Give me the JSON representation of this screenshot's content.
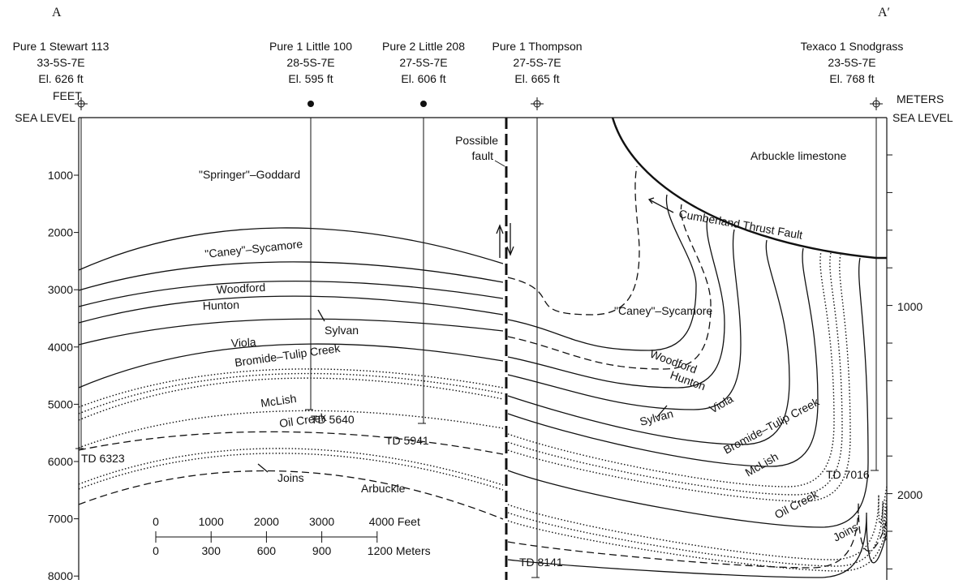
{
  "header": {
    "left_marker": "A",
    "right_marker": "A′"
  },
  "wells": [
    {
      "name": "Pure 1 Stewart 113",
      "location": "33-5S-7E",
      "elevation": "El. 626 ft",
      "td": "TD 6323"
    },
    {
      "name": "Pure 1 Little 100",
      "location": "28-5S-7E",
      "elevation": "El. 595 ft",
      "td": "TD 5640"
    },
    {
      "name": "Pure 2 Little 208",
      "location": "27-5S-7E",
      "elevation": "El. 606 ft",
      "td": "TD 5941"
    },
    {
      "name": "Pure 1 Thompson",
      "location": "27-5S-7E",
      "elevation": "El. 665 ft",
      "td": "TD 8141"
    },
    {
      "name": "Texaco 1 Snodgrass",
      "location": "23-5S-7E",
      "elevation": "El. 768 ft",
      "td": "TD 7016"
    }
  ],
  "left_axis": {
    "unit": "FEET",
    "datum": "SEA LEVEL",
    "ticks": [
      "1000",
      "2000",
      "3000",
      "4000",
      "5000",
      "6000",
      "7000",
      "8000"
    ]
  },
  "right_axis": {
    "unit": "METERS",
    "datum": "SEA LEVEL",
    "ticks": [
      "1000",
      "2000"
    ]
  },
  "formations": [
    "\"Springer\"–Goddard",
    "Arbuckle limestone",
    "\"Caney\"–Sycamore",
    "Woodford",
    "Hunton",
    "Sylvan",
    "Viola",
    "Bromide–Tulip Creek",
    "McLish",
    "Oil Creek",
    "Joins",
    "Arbuckle",
    "\"Caney\"–Sycamore",
    "Woodford",
    "Hunton",
    "Sylvan",
    "Viola",
    "Bromide–Tulip Creek",
    "McLish",
    "Oil Creek",
    "Joins"
  ],
  "annotations": {
    "possible_fault": [
      "Possible",
      "fault"
    ],
    "thrust_fault": "Cumberland Thrust Fault"
  },
  "scale_bar": {
    "feet": [
      "0",
      "1000",
      "2000",
      "3000",
      "4000 Feet"
    ],
    "meters": [
      "0",
      "300",
      "600",
      "900",
      "1200 Meters"
    ]
  }
}
